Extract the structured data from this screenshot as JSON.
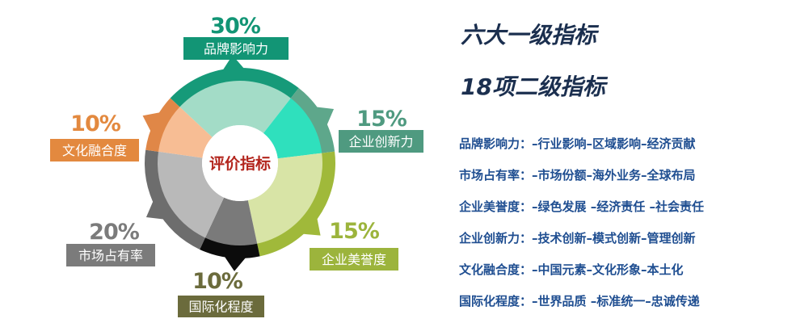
{
  "diagram": {
    "center_label": "评价指标",
    "segments": [
      {
        "name": "品牌影响力",
        "percent": "30%",
        "value": 30,
        "color": "#a3dcc7",
        "ring_color": "#169a79",
        "label_color": "#129575"
      },
      {
        "name": "企业创新力",
        "percent": "15%",
        "value": 15,
        "color": "#2fe0bd",
        "ring_color": "#5ea78b",
        "label_color": "#4f9a80"
      },
      {
        "name": "企业美誉度",
        "percent": "15%",
        "value": 15,
        "color": "#d8e4a6",
        "ring_color": "#a0b93a",
        "label_color": "#9cb43c"
      },
      {
        "name": "国际化程度",
        "percent": "10%",
        "value": 10,
        "color": "#7a7a7a",
        "ring_color": "#0c0c0c",
        "label_color": "#6b6b3c"
      },
      {
        "name": "市场占有率",
        "percent": "20%",
        "value": 20,
        "color": "#b9b9b9",
        "ring_color": "#6d6d6d",
        "label_color": "#7b7b7b"
      },
      {
        "name": "文化融合度",
        "percent": "10%",
        "value": 10,
        "color": "#f7bd94",
        "ring_color": "#e08747",
        "label_color": "#e3893f"
      }
    ]
  },
  "right_panel": {
    "title_1": "六大一级指标",
    "title_2": "18项二级指标",
    "indicators": [
      {
        "label": "品牌影响力：",
        "items": "–行业影响–区域影响–经济贡献"
      },
      {
        "label": "市场占有率：",
        "items": "–市场份额–海外业务–全球布局"
      },
      {
        "label": "企业美誉度：",
        "items": "–绿色发展 –经济责任 –社会责任"
      },
      {
        "label": "企业创新力：",
        "items": "–技术创新–模式创新–管理创新"
      },
      {
        "label": "文化融合度：",
        "items": "–中国元素–文化形象–本土化"
      },
      {
        "label": "国际化程度：",
        "items": "–世界品质 –标准统一–忠诚传递"
      }
    ]
  }
}
